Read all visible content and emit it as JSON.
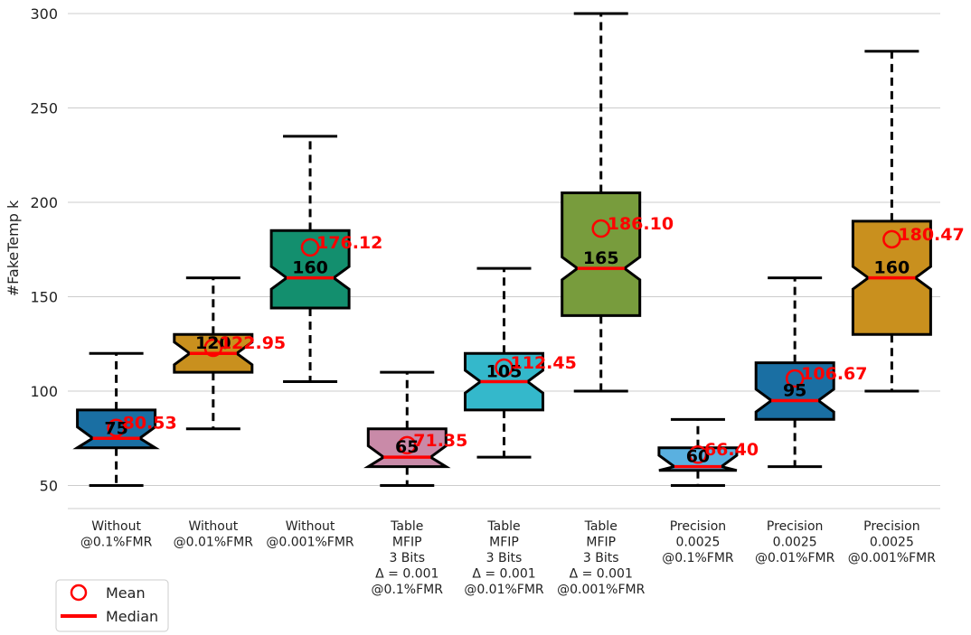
{
  "chart_data": {
    "type": "box",
    "ylabel": "#FakeTemp k",
    "xlabel": "",
    "title": "",
    "ylim": [
      38,
      303
    ],
    "yticks": [
      50,
      100,
      150,
      200,
      250,
      300
    ],
    "grid": "horizontal",
    "categories": [
      [
        "Without",
        "@0.1%FMR"
      ],
      [
        "Without",
        "@0.01%FMR"
      ],
      [
        "Without",
        "@0.001%FMR"
      ],
      [
        "Table",
        "MFIP",
        "3 Bits",
        "Δ = 0.001",
        "@0.1%FMR"
      ],
      [
        "Table",
        "MFIP",
        "3 Bits",
        "Δ = 0.001",
        "@0.01%FMR"
      ],
      [
        "Table",
        "MFIP",
        "3 Bits",
        "Δ = 0.001",
        "@0.001%FMR"
      ],
      [
        "Precision",
        "0.0025",
        "@0.1%FMR"
      ],
      [
        "Precision",
        "0.0025",
        "@0.01%FMR"
      ],
      [
        "Precision",
        "0.0025",
        "@0.001%FMR"
      ]
    ],
    "boxes": [
      {
        "whislo": 50,
        "q1": 70,
        "med": 75,
        "q3": 90,
        "whishi": 120,
        "mean": 80.53,
        "median_label": "75",
        "mean_label": "80.53",
        "color": "#1a6fa3"
      },
      {
        "whislo": 80,
        "q1": 110,
        "med": 120,
        "q3": 130,
        "whishi": 160,
        "mean": 122.95,
        "median_label": "120",
        "mean_label": "122.95",
        "color": "#c9901e"
      },
      {
        "whislo": 105,
        "q1": 144,
        "med": 160,
        "q3": 185,
        "whishi": 235,
        "mean": 176.12,
        "median_label": "160",
        "mean_label": "176.12",
        "color": "#138f6e"
      },
      {
        "whislo": 50,
        "q1": 60,
        "med": 65,
        "q3": 80,
        "whishi": 110,
        "mean": 71.35,
        "median_label": "65",
        "mean_label": "71.35",
        "color": "#c98aa8"
      },
      {
        "whislo": 65,
        "q1": 90,
        "med": 105,
        "q3": 120,
        "whishi": 165,
        "mean": 112.45,
        "median_label": "105",
        "mean_label": "112.45",
        "color": "#34b8cb"
      },
      {
        "whislo": 100,
        "q1": 140,
        "med": 165,
        "q3": 205,
        "whishi": 300,
        "mean": 186.1,
        "median_label": "165",
        "mean_label": "186.10",
        "color": "#789c3d"
      },
      {
        "whislo": 50,
        "q1": 58,
        "med": 60,
        "q3": 70,
        "whishi": 85,
        "mean": 66.4,
        "median_label": "60",
        "mean_label": "66.40",
        "color": "#5ab0e0"
      },
      {
        "whislo": 60,
        "q1": 85,
        "med": 95,
        "q3": 115,
        "whishi": 160,
        "mean": 106.67,
        "median_label": "95",
        "mean_label": "106.67",
        "color": "#1a6fa3"
      },
      {
        "whislo": 100,
        "q1": 130,
        "med": 160,
        "q3": 190,
        "whishi": 280,
        "mean": 180.47,
        "median_label": "160",
        "mean_label": "180.47",
        "color": "#c9901e"
      }
    ],
    "legend": {
      "position": "bottom-left",
      "entries": [
        {
          "label": "Mean",
          "marker": "circle",
          "color": "#ff0000"
        },
        {
          "label": "Median",
          "marker": "line",
          "color": "#ff0000"
        }
      ]
    },
    "colors": {
      "mean": "#ff0000",
      "median": "#ff0000",
      "grid": "#cccccc",
      "outline": "#000000"
    }
  }
}
